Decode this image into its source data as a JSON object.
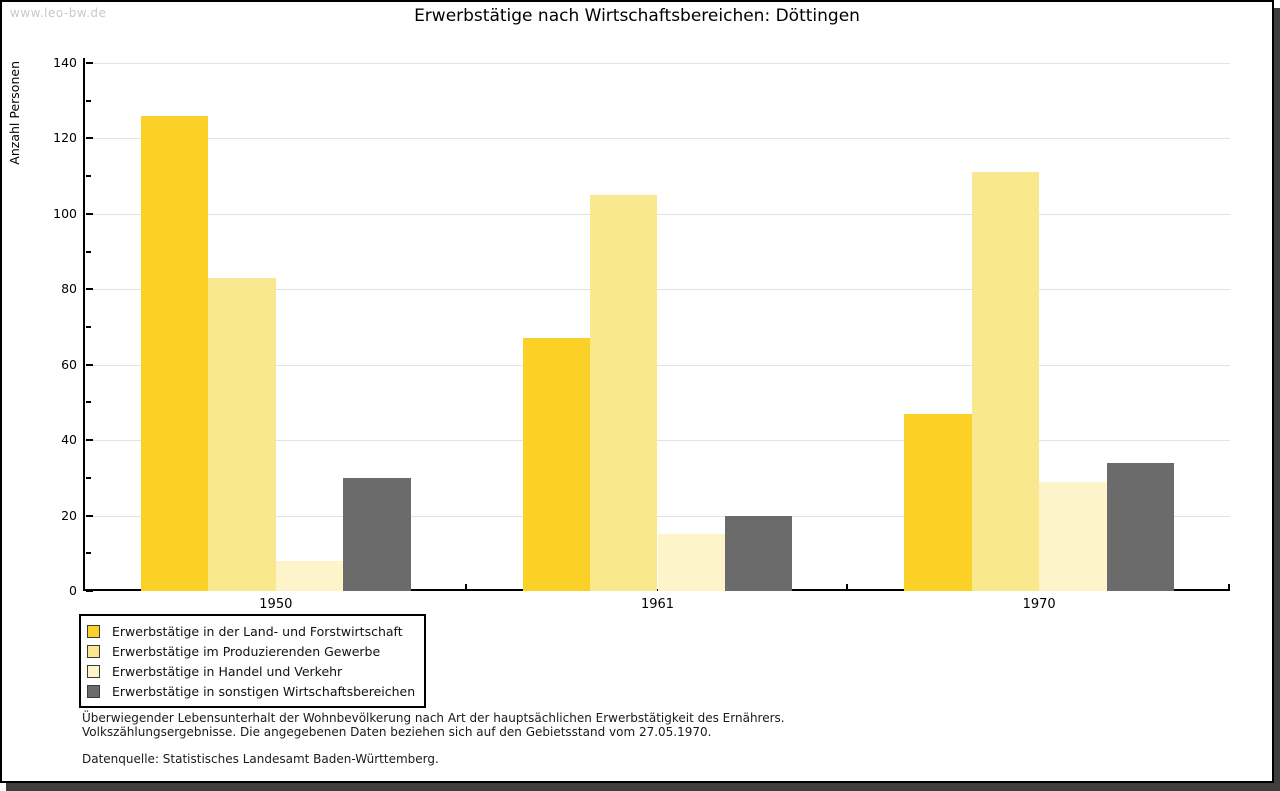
{
  "header": {
    "watermark": "www.leo-bw.de",
    "title": "Erwerbstätige nach Wirtschaftsbereichen: Döttingen"
  },
  "chart_data": {
    "type": "bar",
    "title": "Erwerbstätige nach Wirtschaftsbereichen: Döttingen",
    "categories": [
      "1950",
      "1961",
      "1970"
    ],
    "series": [
      {
        "name": "Erwerbstätige in der Land- und Forstwirtschaft",
        "color": "#fbd128",
        "values": [
          126,
          67,
          47
        ]
      },
      {
        "name": "Erwerbstätige im Produzierenden Gewerbe",
        "color": "#fae88e",
        "values": [
          83,
          105,
          111
        ]
      },
      {
        "name": "Erwerbstätige in Handel und Verkehr",
        "color": "#fdf4ca",
        "values": [
          8,
          15,
          29
        ]
      },
      {
        "name": "Erwerbstätige in sonstigen Wirtschaftsbereichen",
        "color": "#6b6b6b",
        "values": [
          30,
          20,
          34
        ]
      }
    ],
    "xlabel": "",
    "ylabel": "Anzahl Personen",
    "ylim": [
      0,
      140
    ],
    "ytick_major": 20,
    "ytick_minor": 10,
    "grid": true,
    "legend_position": "bottom-left",
    "colors": {
      "axis": "#000000",
      "gridline": "#e3e3e3",
      "frame_shadow": "#3e3e3e",
      "watermark_text": "#c9c9c9"
    }
  },
  "footnotes": {
    "line1": "Überwiegender Lebensunterhalt der Wohnbevölkerung nach Art der hauptsächlichen Erwerbstätigkeit des Ernährers.",
    "line2": "Volkszählungsergebnisse. Die angegebenen Daten beziehen sich auf den Gebietsstand vom 27.05.1970.",
    "source": "Datenquelle: Statistisches Landesamt Baden-Württemberg."
  }
}
